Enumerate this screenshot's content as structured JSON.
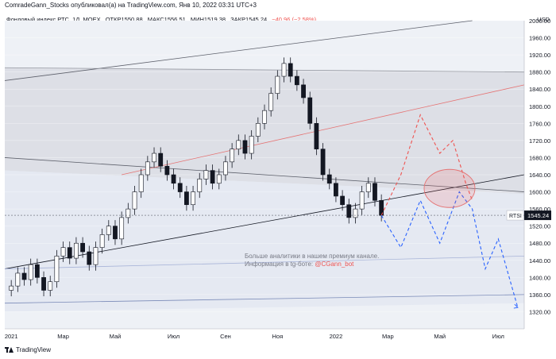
{
  "header": {
    "publisher": "ComradeGann_Stocks опубликовал(а) на TradingView.com, Янв 10, 2022 03:31 UTC+3"
  },
  "legend": {
    "title": "Фондовый индекс РТС, 1Д, MOEX",
    "open": "ОТКР1550.88",
    "high": "МАКС1556.51",
    "low": "МИН1519.38",
    "close": "ЗАКР1545.24",
    "change": "−40.96 (−2.58%)"
  },
  "currency": "USD",
  "symbol_tag": "RTSI",
  "price_tag": "1545.24",
  "annotation": {
    "line1": "Больше аналитики в нашем премиум канале.",
    "line2_prefix": "Информация в tg-боте: ",
    "handle": "@CGann_bot"
  },
  "footer": {
    "brand": "TradingView"
  },
  "colors": {
    "up_candle": "#131722",
    "down_candle": "#131722",
    "bull_path": "#ef5350",
    "bear_path": "#2962ff",
    "ellipse": "#e57373",
    "price_tag_bg": "#131722"
  },
  "chart_data": {
    "type": "candlestick",
    "ylim": [
      1280,
      2000
    ],
    "y_ticks": [
      1320,
      1360,
      1400,
      1440,
      1480,
      1520,
      1560,
      1600,
      1640,
      1680,
      1720,
      1760,
      1800,
      1840,
      1880,
      1920,
      1960,
      2000
    ],
    "x_ticks": [
      "2021",
      "Мар",
      "Май",
      "Июл",
      "Сен",
      "Ноя",
      "2022",
      "Мар",
      "Май",
      "Июл"
    ],
    "series": [
      {
        "values": [
          [
            1,
            1380
          ],
          [
            2,
            1410
          ],
          [
            3,
            1395
          ],
          [
            4,
            1430
          ],
          [
            5,
            1400
          ],
          [
            6,
            1370
          ],
          [
            7,
            1390
          ],
          [
            8,
            1450
          ],
          [
            9,
            1470
          ],
          [
            10,
            1445
          ],
          [
            11,
            1480
          ],
          [
            12,
            1460
          ],
          [
            13,
            1430
          ],
          [
            14,
            1470
          ],
          [
            15,
            1500
          ],
          [
            16,
            1520
          ],
          [
            17,
            1490
          ],
          [
            18,
            1540
          ],
          [
            19,
            1560
          ],
          [
            20,
            1600
          ],
          [
            21,
            1640
          ],
          [
            22,
            1670
          ],
          [
            23,
            1690
          ],
          [
            24,
            1660
          ],
          [
            25,
            1640
          ],
          [
            26,
            1620
          ],
          [
            27,
            1600
          ],
          [
            28,
            1570
          ],
          [
            29,
            1600
          ],
          [
            30,
            1630
          ],
          [
            31,
            1650
          ],
          [
            32,
            1620
          ],
          [
            33,
            1640
          ],
          [
            34,
            1670
          ],
          [
            35,
            1700
          ],
          [
            36,
            1720
          ],
          [
            37,
            1690
          ],
          [
            38,
            1730
          ],
          [
            39,
            1760
          ],
          [
            40,
            1790
          ],
          [
            41,
            1830
          ],
          [
            42,
            1870
          ],
          [
            43,
            1900
          ],
          [
            44,
            1870
          ],
          [
            45,
            1850
          ],
          [
            46,
            1820
          ],
          [
            47,
            1760
          ],
          [
            48,
            1700
          ],
          [
            49,
            1640
          ],
          [
            50,
            1620
          ],
          [
            51,
            1590
          ],
          [
            52,
            1570
          ],
          [
            53,
            1540
          ],
          [
            54,
            1560
          ],
          [
            55,
            1600
          ],
          [
            56,
            1620
          ],
          [
            57,
            1580
          ],
          [
            58,
            1545
          ]
        ]
      }
    ],
    "projections": {
      "bull": [
        [
          58,
          1545
        ],
        [
          61,
          1640
        ],
        [
          64,
          1780
        ],
        [
          67,
          1690
        ],
        [
          69,
          1720
        ],
        [
          71,
          1620
        ],
        [
          72,
          1580
        ]
      ],
      "bear": [
        [
          58,
          1545
        ],
        [
          61,
          1470
        ],
        [
          64,
          1580
        ],
        [
          67,
          1480
        ],
        [
          70,
          1600
        ],
        [
          72,
          1560
        ],
        [
          74,
          1420
        ],
        [
          76,
          1490
        ],
        [
          79,
          1330
        ]
      ]
    }
  }
}
